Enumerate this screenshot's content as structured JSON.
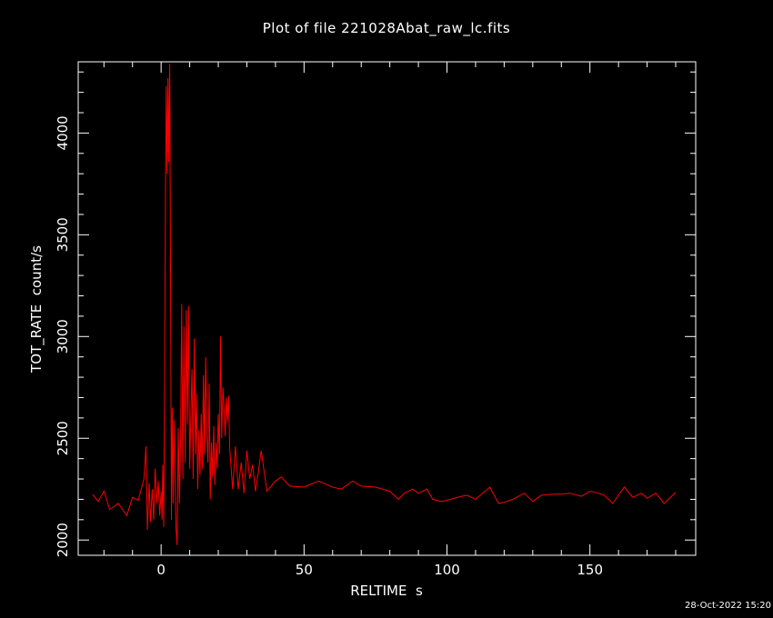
{
  "chart_data": {
    "type": "line",
    "title": "Plot of file 221028Abat_raw_lc.fits",
    "xlabel": "RELTIME  s",
    "ylabel": "TOT_RATE  count/s",
    "xlim": [
      -29,
      187
    ],
    "ylim": [
      1925,
      4350
    ],
    "x_ticks": [
      0,
      50,
      100,
      150
    ],
    "y_ticks": [
      2000,
      2500,
      3000,
      3500,
      4000
    ],
    "grid": false,
    "series": [
      {
        "color": "#ff0000",
        "points": [
          [
            -24,
            2225
          ],
          [
            -22,
            2190
          ],
          [
            -20,
            2240
          ],
          [
            -18,
            2150
          ],
          [
            -15,
            2180
          ],
          [
            -12,
            2120
          ],
          [
            -10,
            2210
          ],
          [
            -8,
            2195
          ],
          [
            -6,
            2300
          ],
          [
            -5.3,
            2460
          ],
          [
            -4.8,
            2050
          ],
          [
            -4.2,
            2280
          ],
          [
            -3.7,
            2090
          ],
          [
            -3.1,
            2250
          ],
          [
            -2.6,
            2100
          ],
          [
            -2.1,
            2350
          ],
          [
            -1.5,
            2180
          ],
          [
            -1,
            2290
          ],
          [
            -0.5,
            2120
          ],
          [
            0,
            2240
          ],
          [
            0.3,
            2100
          ],
          [
            0.6,
            2370
          ],
          [
            0.9,
            2065
          ],
          [
            1.2,
            2700
          ],
          [
            1.5,
            3660
          ],
          [
            1.8,
            4230
          ],
          [
            2.1,
            3800
          ],
          [
            2.4,
            4270
          ],
          [
            2.7,
            3860
          ],
          [
            3.0,
            4340
          ],
          [
            3.3,
            3330
          ],
          [
            3.6,
            2100
          ],
          [
            3.9,
            2650
          ],
          [
            4.2,
            2180
          ],
          [
            4.5,
            2590
          ],
          [
            4.8,
            2380
          ],
          [
            5.2,
            2060
          ],
          [
            5.6,
            1975
          ],
          [
            6.0,
            2550
          ],
          [
            6.4,
            2180
          ],
          [
            6.8,
            2470
          ],
          [
            7.2,
            3160
          ],
          [
            7.6,
            2300
          ],
          [
            8.0,
            3050
          ],
          [
            8.4,
            2380
          ],
          [
            8.8,
            3130
          ],
          [
            9.2,
            2570
          ],
          [
            9.6,
            3150
          ],
          [
            10.0,
            2350
          ],
          [
            10.4,
            2620
          ],
          [
            10.8,
            2840
          ],
          [
            11.2,
            2300
          ],
          [
            11.6,
            2990
          ],
          [
            12.0,
            2420
          ],
          [
            12.4,
            2720
          ],
          [
            12.8,
            2250
          ],
          [
            13.2,
            2540
          ],
          [
            13.6,
            2320
          ],
          [
            14.0,
            2620
          ],
          [
            14.4,
            2350
          ],
          [
            14.8,
            2810
          ],
          [
            15.2,
            2420
          ],
          [
            15.6,
            2900
          ],
          [
            16.0,
            2520
          ],
          [
            16.4,
            2380
          ],
          [
            16.8,
            2770
          ],
          [
            17.2,
            2200
          ],
          [
            17.6,
            2480
          ],
          [
            18.0,
            2310
          ],
          [
            18.4,
            2560
          ],
          [
            18.8,
            2270
          ],
          [
            19.2,
            2480
          ],
          [
            19.6,
            2350
          ],
          [
            20.0,
            2620
          ],
          [
            20.4,
            2420
          ],
          [
            20.8,
            3000
          ],
          [
            21.2,
            2500
          ],
          [
            21.6,
            2750
          ],
          [
            22.0,
            2660
          ],
          [
            22.4,
            2510
          ],
          [
            22.8,
            2700
          ],
          [
            23.2,
            2580
          ],
          [
            23.6,
            2710
          ],
          [
            24.0,
            2450
          ],
          [
            25,
            2250
          ],
          [
            26,
            2460
          ],
          [
            27,
            2250
          ],
          [
            28,
            2380
          ],
          [
            29,
            2230
          ],
          [
            30,
            2440
          ],
          [
            31,
            2300
          ],
          [
            32,
            2370
          ],
          [
            33,
            2240
          ],
          [
            34,
            2330
          ],
          [
            35,
            2440
          ],
          [
            37,
            2240
          ],
          [
            40,
            2290
          ],
          [
            42,
            2310
          ],
          [
            45,
            2265
          ],
          [
            50,
            2260
          ],
          [
            55,
            2290
          ],
          [
            60,
            2260
          ],
          [
            63,
            2250
          ],
          [
            67,
            2290
          ],
          [
            70,
            2265
          ],
          [
            75,
            2260
          ],
          [
            80,
            2240
          ],
          [
            83,
            2200
          ],
          [
            85,
            2230
          ],
          [
            88,
            2250
          ],
          [
            90,
            2230
          ],
          [
            93,
            2250
          ],
          [
            95,
            2200
          ],
          [
            98,
            2190
          ],
          [
            100,
            2195
          ],
          [
            105,
            2215
          ],
          [
            107,
            2220
          ],
          [
            110,
            2200
          ],
          [
            115,
            2260
          ],
          [
            118,
            2180
          ],
          [
            120,
            2185
          ],
          [
            123,
            2200
          ],
          [
            127,
            2230
          ],
          [
            130,
            2190
          ],
          [
            133,
            2220
          ],
          [
            137,
            2225
          ],
          [
            140,
            2225
          ],
          [
            143,
            2230
          ],
          [
            147,
            2215
          ],
          [
            150,
            2240
          ],
          [
            153,
            2230
          ],
          [
            155,
            2220
          ],
          [
            158,
            2180
          ],
          [
            162,
            2260
          ],
          [
            165,
            2210
          ],
          [
            168,
            2230
          ],
          [
            170,
            2205
          ],
          [
            173,
            2230
          ],
          [
            176,
            2180
          ],
          [
            180,
            2235
          ]
        ]
      }
    ]
  },
  "footer": {
    "timestamp": "28-Oct-2022 15:20"
  }
}
